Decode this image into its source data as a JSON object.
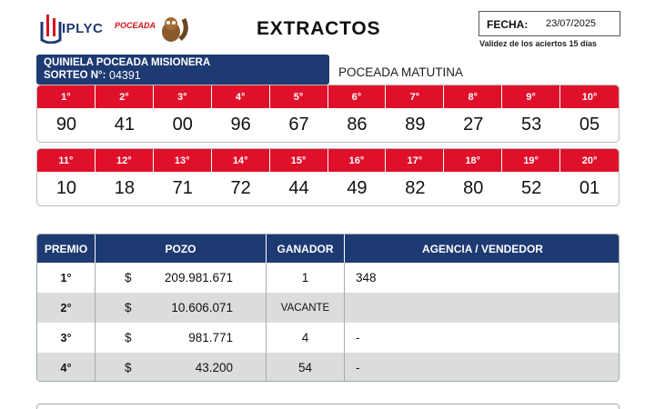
{
  "header": {
    "logo_text": "IPLYC",
    "logo_poceada": "POCEADA",
    "title": "EXTRACTOS",
    "date_label": "FECHA:",
    "date_value": "23/07/2025",
    "validity": "Validez de los aciertos 15 días"
  },
  "game": {
    "name": "QUINIELA POCEADA MISIONERA",
    "draw_label": "SORTEO N°:",
    "draw_number": "04391",
    "edition": "POCEADA MATUTINA"
  },
  "results_top": {
    "positions": [
      "1°",
      "2°",
      "3°",
      "4°",
      "5°",
      "6°",
      "7°",
      "8°",
      "9°",
      "10°"
    ],
    "numbers": [
      "90",
      "41",
      "00",
      "96",
      "67",
      "86",
      "89",
      "27",
      "53",
      "05"
    ]
  },
  "results_bottom": {
    "positions": [
      "11°",
      "12°",
      "13°",
      "14°",
      "15°",
      "16°",
      "17°",
      "18°",
      "19°",
      "20°"
    ],
    "numbers": [
      "10",
      "18",
      "71",
      "72",
      "44",
      "49",
      "82",
      "80",
      "52",
      "01"
    ]
  },
  "prizes": {
    "headers": [
      "PREMIO",
      "POZO",
      "GANADOR",
      "AGENCIA / VENDEDOR"
    ],
    "currency": "$",
    "rows": [
      {
        "rank": "1°",
        "pozo": "209.981.671",
        "winners": "1",
        "agency": "348"
      },
      {
        "rank": "2°",
        "pozo": "10.606.071",
        "winners": "VACANTE",
        "agency": ""
      },
      {
        "rank": "3°",
        "pozo": "981.771",
        "winners": "4",
        "agency": "-"
      },
      {
        "rank": "4°",
        "pozo": "43.200",
        "winners": "54",
        "agency": "-"
      }
    ]
  },
  "colors": {
    "navy": "#1e3a72",
    "red": "#e0102a"
  }
}
